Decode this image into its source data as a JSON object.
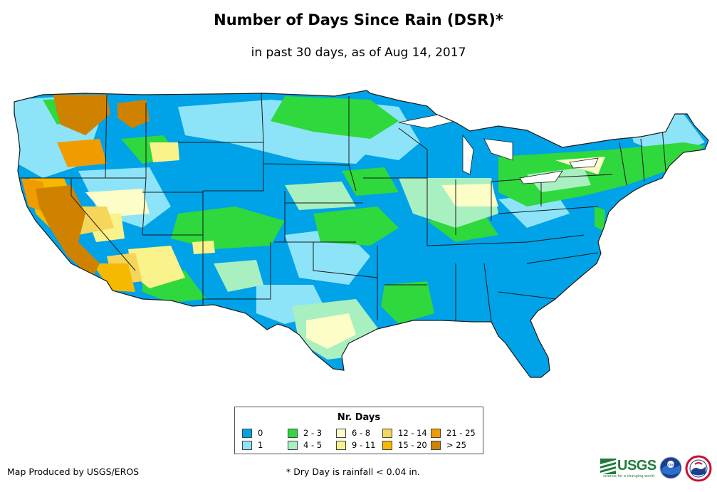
{
  "title": "Number of Days Since Rain (DSR)*",
  "subtitle": "in past 30 days, as of Aug 14, 2017",
  "legend": {
    "title": "Nr. Days",
    "items": [
      {
        "label": "0",
        "color": "#00a2e8"
      },
      {
        "label": "1",
        "color": "#8de4f8"
      },
      {
        "label": "2 - 3",
        "color": "#2fd83c"
      },
      {
        "label": "4 - 5",
        "color": "#a8f0c0"
      },
      {
        "label": "6 - 8",
        "color": "#fdfdc8"
      },
      {
        "label": "9 - 11",
        "color": "#faf28a"
      },
      {
        "label": "12 - 14",
        "color": "#f5d65a"
      },
      {
        "label": "15 - 20",
        "color": "#f6b800"
      },
      {
        "label": "21 - 25",
        "color": "#f09c00"
      },
      {
        "label": "> 25",
        "color": "#cf8200"
      }
    ]
  },
  "footer": {
    "credit": "Map Produced by USGS/EROS",
    "note": "* Dry Day is rainfall < 0.04 in.",
    "logos": [
      {
        "icon": "usgs-logo",
        "text": "USGS",
        "tagline": "science for a changing world"
      },
      {
        "icon": "noaa-logo",
        "text": "noaa"
      },
      {
        "icon": "nws-logo",
        "text": ""
      }
    ]
  }
}
